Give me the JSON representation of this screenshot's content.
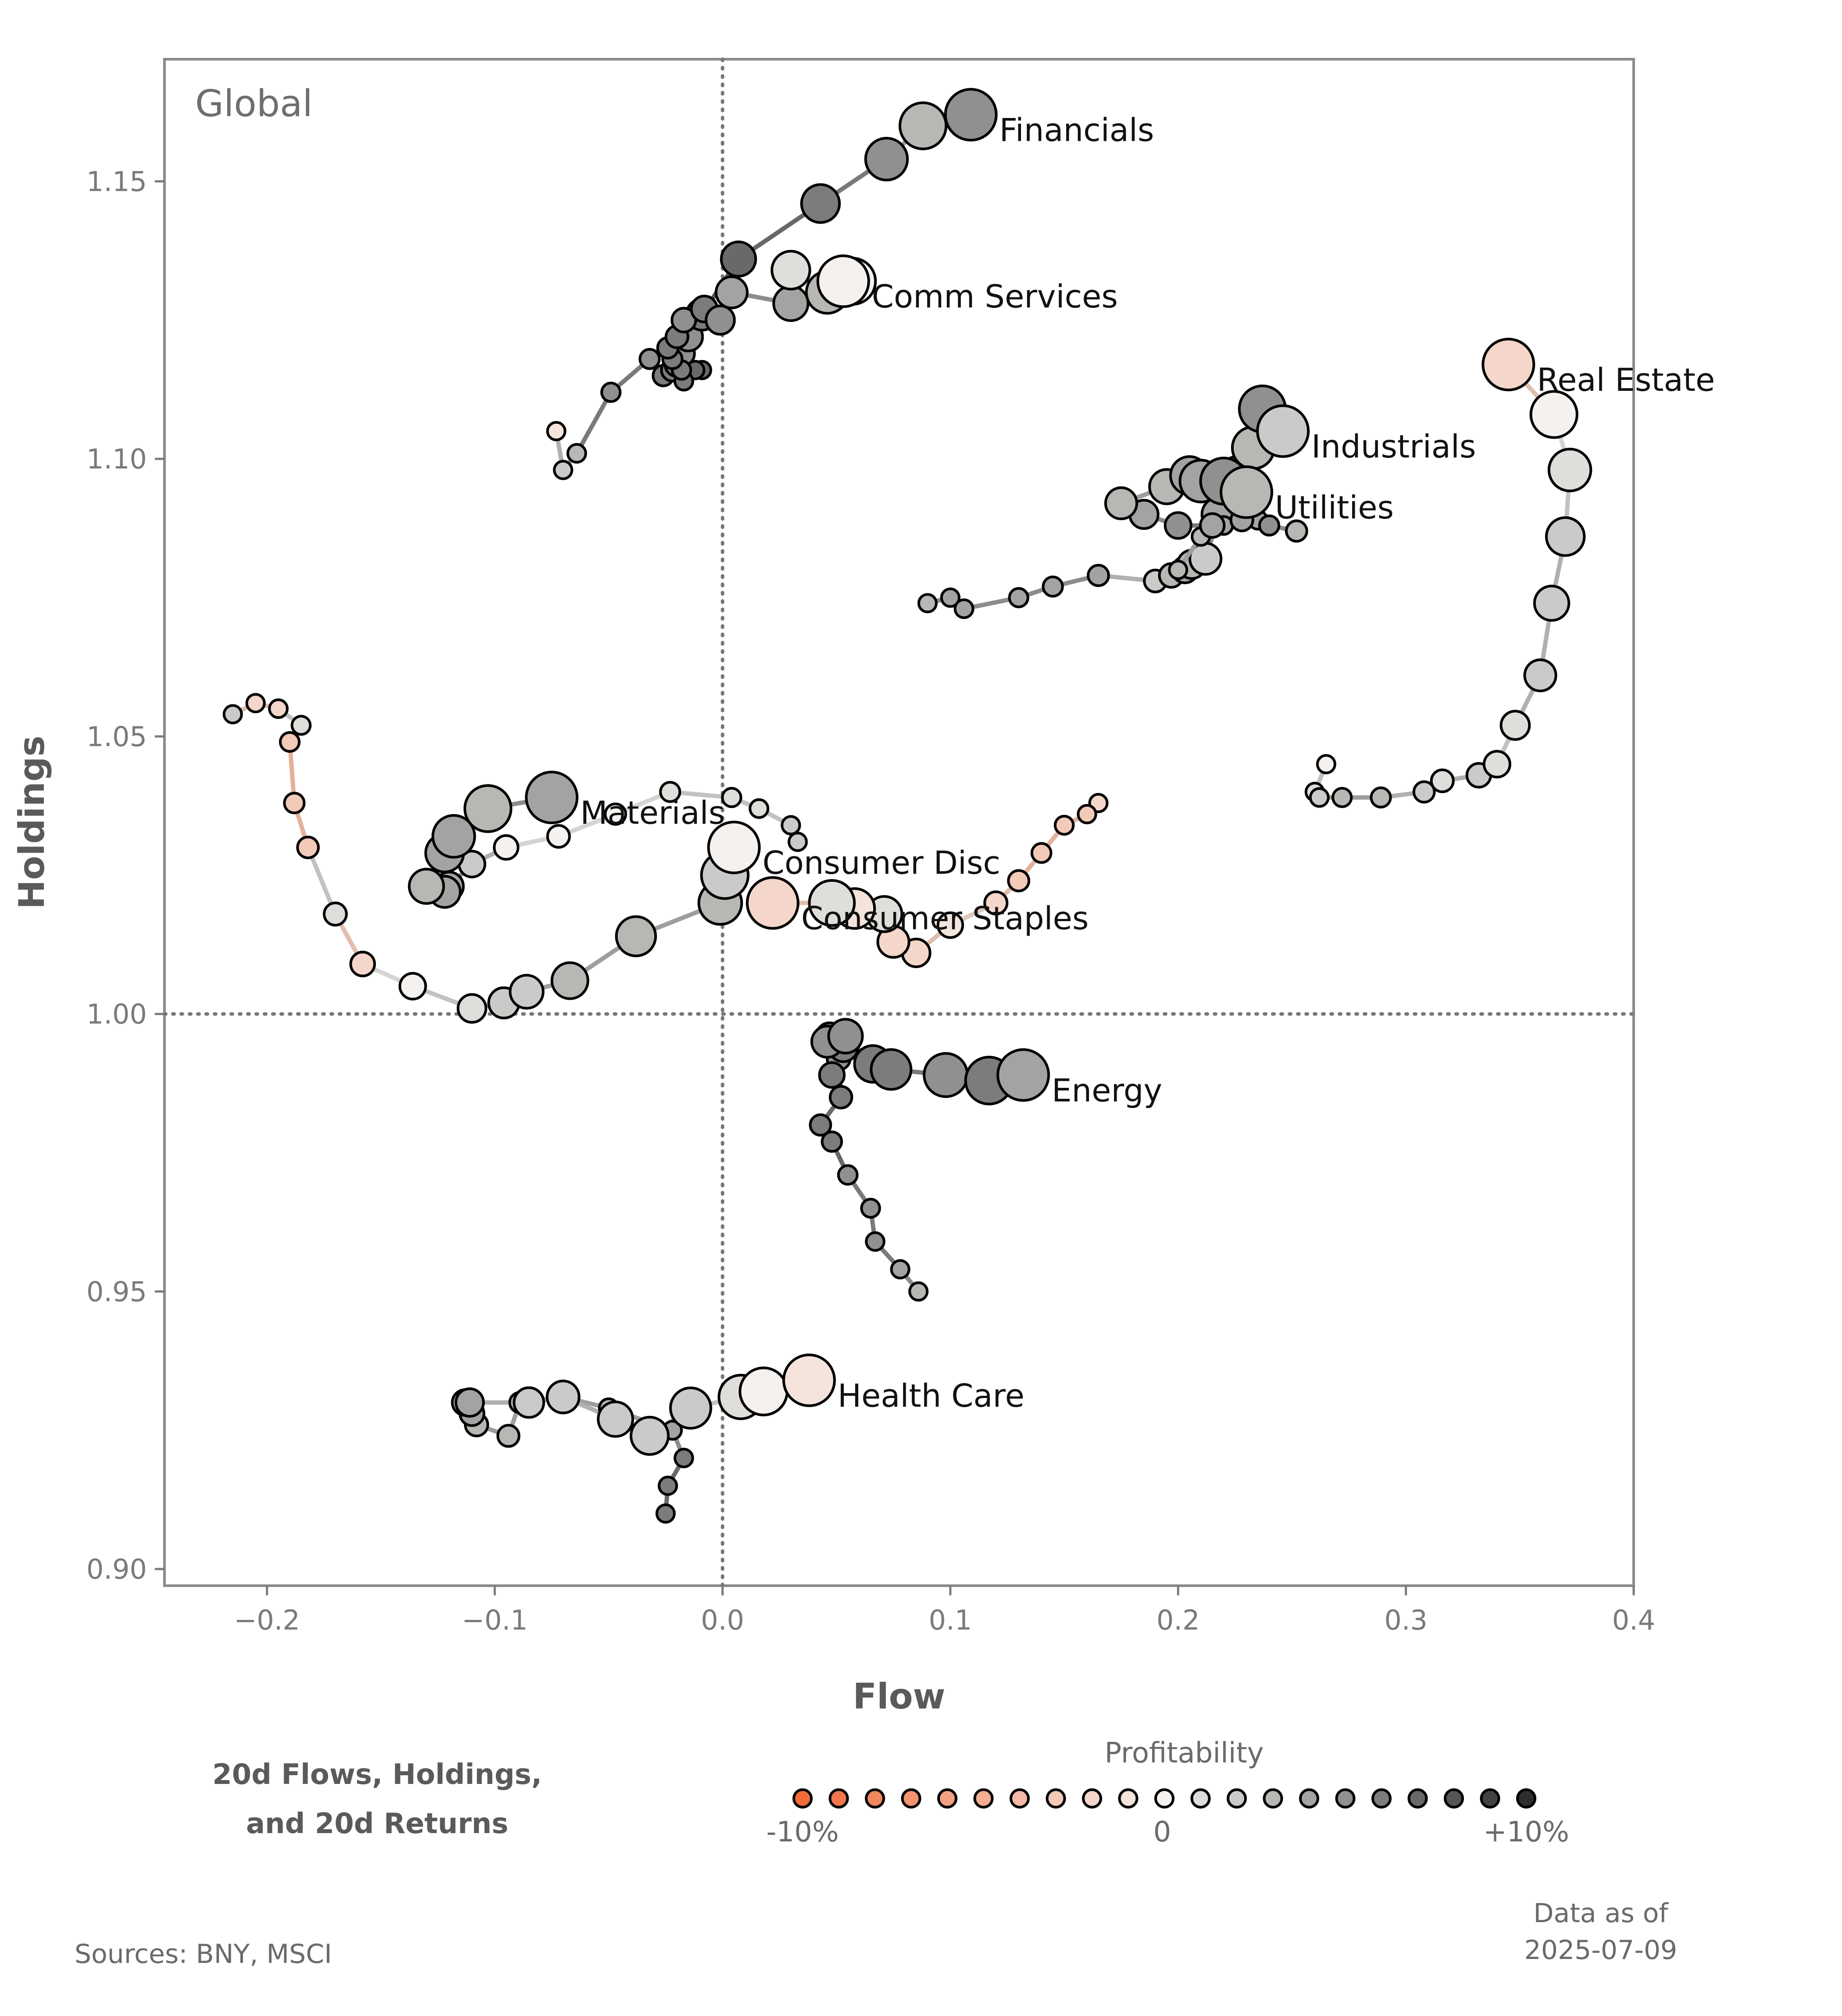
{
  "colors": {
    "neg": "#f26b3a",
    "neutral": "#f4f1ee",
    "pos": "#2e2e2e",
    "axis": "#7a7a7a",
    "frame": "#8a8a8a"
  },
  "chart_data": {
    "type": "scatter",
    "title": "Global",
    "xlabel": "Flow",
    "ylabel": "Holdings",
    "xlim": [
      -0.245,
      0.4
    ],
    "ylim": [
      0.897,
      1.172
    ],
    "xticks": [
      -0.2,
      -0.1,
      0.0,
      0.1,
      0.2,
      0.3,
      0.4
    ],
    "xtick_labels": [
      "−0.2",
      "−0.1",
      "0.0",
      "0.1",
      "0.2",
      "0.3",
      "0.4"
    ],
    "yticks": [
      0.9,
      0.95,
      1.0,
      1.05,
      1.1,
      1.15
    ],
    "ytick_labels": [
      "0.90",
      "0.95",
      "1.00",
      "1.05",
      "1.10",
      "1.15"
    ],
    "reference_lines": {
      "x": 0.0,
      "y": 1.0
    },
    "series": [
      {
        "name": "Financials",
        "x": [
          -0.073,
          -0.07,
          -0.064,
          -0.049,
          -0.032,
          -0.026,
          -0.022,
          -0.02,
          -0.018,
          -0.015,
          -0.009,
          0.007,
          0.043,
          0.072,
          0.088,
          0.109
        ],
        "y": [
          1.105,
          1.098,
          1.101,
          1.112,
          1.118,
          1.115,
          1.116,
          1.117,
          1.119,
          1.122,
          1.126,
          1.136,
          1.146,
          1.154,
          1.16,
          1.162
        ],
        "profit": [
          -1,
          2,
          3,
          5,
          5,
          6,
          6,
          6,
          5,
          5,
          6,
          7,
          6,
          5,
          3,
          5
        ]
      },
      {
        "name": "Comm Services",
        "x": [
          -0.009,
          -0.012,
          -0.017,
          -0.018,
          -0.022,
          -0.024,
          -0.02,
          -0.017,
          -0.008,
          -0.001,
          0.004,
          0.03,
          0.03,
          0.046,
          0.057,
          0.053
        ],
        "y": [
          1.116,
          1.116,
          1.114,
          1.116,
          1.118,
          1.12,
          1.122,
          1.125,
          1.127,
          1.125,
          1.13,
          1.128,
          1.134,
          1.13,
          1.132,
          1.132
        ],
        "profit": [
          7,
          7,
          6,
          6,
          6,
          6,
          6,
          5,
          6,
          5,
          4,
          4,
          1,
          3,
          0,
          0
        ]
      },
      {
        "name": "Real Estate",
        "x": [
          0.265,
          0.26,
          0.262,
          0.272,
          0.289,
          0.308,
          0.316,
          0.332,
          0.34,
          0.348,
          0.359,
          0.364,
          0.37,
          0.372,
          0.365,
          0.345
        ],
        "y": [
          1.045,
          1.04,
          1.039,
          1.039,
          1.039,
          1.04,
          1.042,
          1.043,
          1.045,
          1.052,
          1.061,
          1.074,
          1.086,
          1.098,
          1.108,
          1.117
        ],
        "profit": [
          0,
          1,
          2,
          3,
          3,
          2,
          1,
          2,
          1,
          1,
          2,
          2,
          2,
          1,
          0,
          -2
        ]
      },
      {
        "name": "Industrials",
        "x": [
          0.09,
          0.1,
          0.106,
          0.13,
          0.145,
          0.165,
          0.19,
          0.197,
          0.203,
          0.206,
          0.212,
          0.218,
          0.226,
          0.233,
          0.237,
          0.246
        ],
        "y": [
          1.074,
          1.075,
          1.073,
          1.075,
          1.077,
          1.079,
          1.078,
          1.079,
          1.08,
          1.081,
          1.082,
          1.09,
          1.097,
          1.102,
          1.109,
          1.105
        ],
        "profit": [
          3,
          4,
          4,
          4,
          4,
          4,
          2,
          3,
          4,
          3,
          2,
          4,
          3,
          3,
          5,
          2
        ]
      },
      {
        "name": "Utilities",
        "x": [
          0.2,
          0.21,
          0.22,
          0.235,
          0.24,
          0.252,
          0.228,
          0.215,
          0.2,
          0.185,
          0.175,
          0.195,
          0.205,
          0.21,
          0.22,
          0.23
        ],
        "y": [
          1.08,
          1.086,
          1.088,
          1.089,
          1.088,
          1.087,
          1.089,
          1.088,
          1.088,
          1.09,
          1.092,
          1.095,
          1.097,
          1.096,
          1.096,
          1.094
        ],
        "profit": [
          3,
          3,
          4,
          4,
          5,
          3,
          4,
          4,
          5,
          4,
          3,
          3,
          4,
          4,
          5,
          3
        ]
      },
      {
        "name": "Materials",
        "x": [
          0.033,
          0.03,
          0.016,
          0.004,
          -0.023,
          -0.047,
          -0.072,
          -0.095,
          -0.11,
          -0.12,
          -0.122,
          -0.13,
          -0.122,
          -0.118,
          -0.103,
          -0.075
        ],
        "y": [
          1.031,
          1.034,
          1.037,
          1.039,
          1.04,
          1.036,
          1.032,
          1.03,
          1.027,
          1.023,
          1.022,
          1.023,
          1.029,
          1.032,
          1.037,
          1.039
        ],
        "profit": [
          2,
          2,
          1,
          1,
          1,
          0,
          0,
          0,
          2,
          4,
          4,
          3,
          4,
          4,
          3,
          4
        ]
      },
      {
        "name": "Consumer Disc",
        "x": [
          -0.215,
          -0.205,
          -0.195,
          -0.185,
          -0.19,
          -0.188,
          -0.182,
          -0.17,
          -0.158,
          -0.136,
          -0.11,
          -0.096,
          -0.086,
          -0.067,
          -0.038,
          -0.001,
          0.001,
          0.005
        ],
        "y": [
          1.054,
          1.056,
          1.055,
          1.052,
          1.049,
          1.038,
          1.03,
          1.018,
          1.009,
          1.005,
          1.001,
          1.002,
          1.004,
          1.006,
          1.014,
          1.02,
          1.025,
          1.03
        ],
        "profit": [
          2,
          -2,
          -2,
          1,
          -3,
          -3,
          -3,
          1,
          -2,
          0,
          1,
          2,
          2,
          3,
          3,
          3,
          2,
          0
        ]
      },
      {
        "name": "Consumer Staples",
        "x": [
          0.165,
          0.16,
          0.15,
          0.14,
          0.13,
          0.12,
          0.1,
          0.085,
          0.075,
          0.071,
          0.058,
          0.048,
          0.022
        ],
        "y": [
          1.038,
          1.036,
          1.034,
          1.029,
          1.024,
          1.02,
          1.016,
          1.011,
          1.013,
          1.018,
          1.019,
          1.02,
          1.02
        ],
        "profit": [
          -2,
          -3,
          -3,
          -3,
          -3,
          -2,
          -1,
          -2,
          -2,
          1,
          -1,
          1,
          -2
        ]
      },
      {
        "name": "Energy",
        "x": [
          0.086,
          0.078,
          0.067,
          0.065,
          0.055,
          0.048,
          0.043,
          0.052,
          0.051,
          0.048,
          0.047,
          0.053,
          0.046,
          0.054,
          0.066,
          0.074,
          0.098,
          0.117,
          0.132
        ],
        "y": [
          0.95,
          0.954,
          0.959,
          0.965,
          0.971,
          0.977,
          0.98,
          0.985,
          0.992,
          0.989,
          0.996,
          0.994,
          0.995,
          0.996,
          0.991,
          0.99,
          0.989,
          0.988,
          0.989
        ],
        "profit": [
          3,
          4,
          5,
          5,
          5,
          6,
          6,
          6,
          5,
          6,
          6,
          6,
          5,
          5,
          6,
          6,
          5,
          6,
          4
        ]
      },
      {
        "name": "Health Care",
        "x": [
          -0.025,
          -0.024,
          -0.017,
          -0.022,
          -0.05,
          -0.07,
          -0.089,
          -0.094,
          -0.108,
          -0.11,
          -0.113,
          -0.111,
          -0.085,
          -0.07,
          -0.047,
          -0.032,
          -0.014,
          0.008,
          0.018,
          0.038
        ],
        "y": [
          0.91,
          0.915,
          0.92,
          0.925,
          0.929,
          0.931,
          0.93,
          0.924,
          0.926,
          0.928,
          0.93,
          0.93,
          0.93,
          0.931,
          0.927,
          0.924,
          0.929,
          0.931,
          0.932,
          0.934
        ],
        "profit": [
          6,
          6,
          6,
          4,
          3,
          3,
          3,
          3,
          3,
          4,
          3,
          4,
          2,
          2,
          2,
          2,
          2,
          1,
          0,
          -1
        ]
      }
    ],
    "legend": {
      "title": "Profitability",
      "type": "color-dots",
      "steps": [
        -10,
        -9,
        -8,
        -7,
        -6,
        -5,
        -4,
        -3,
        -2,
        -1,
        0,
        1,
        2,
        3,
        4,
        5,
        6,
        7,
        8,
        9,
        10
      ],
      "labels": [
        "-10%",
        "0",
        "+10%"
      ]
    }
  },
  "footer": {
    "subtitle_line1": "20d Flows, Holdings,",
    "subtitle_line2": "and 20d Returns",
    "sources": "Sources:  BNY, MSCI",
    "as_of_line1": "Data as of",
    "as_of_line2": "2025-07-09"
  }
}
